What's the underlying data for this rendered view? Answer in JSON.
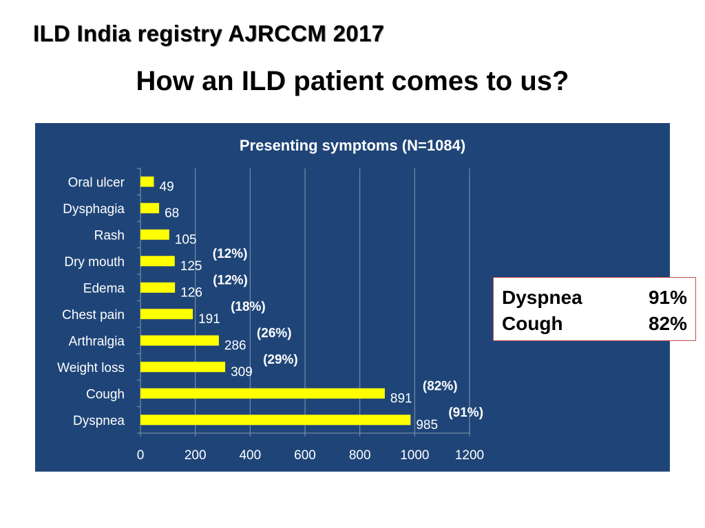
{
  "slide": {
    "heading": "ILD India registry AJRCCM 2017",
    "title": "How an ILD  patient comes to us?"
  },
  "colors": {
    "panel_bg": "#1f4578",
    "bar_fill": "#ffff00",
    "text": "#ffffff",
    "gridline": "#8a98ad",
    "box_border": "#c0504d"
  },
  "chart_data": {
    "type": "bar",
    "orientation": "horizontal",
    "title": "Presenting symptoms (N=1084)",
    "xlabel": "",
    "ylabel": "",
    "categories": [
      "Oral ulcer",
      "Dysphagia",
      "Rash",
      "Dry mouth",
      "Edema",
      "Chest pain",
      "Arthralgia",
      "Weight loss",
      "Cough",
      "Dyspnea"
    ],
    "values": [
      49,
      68,
      105,
      125,
      126,
      191,
      286,
      309,
      891,
      985
    ],
    "percent_labels": [
      "",
      "",
      "",
      "(12%)",
      "(12%)",
      "(18%)",
      "(26%)",
      "(29%)",
      "(82%)",
      "(91%)"
    ],
    "xlim": [
      0,
      1200
    ],
    "xticks": [
      0,
      200,
      400,
      600,
      800,
      1000,
      1200
    ],
    "grid": true
  },
  "summary": {
    "rows": [
      {
        "label": "Dyspnea",
        "value": "91%"
      },
      {
        "label": "Cough",
        "value": "82%"
      }
    ]
  }
}
